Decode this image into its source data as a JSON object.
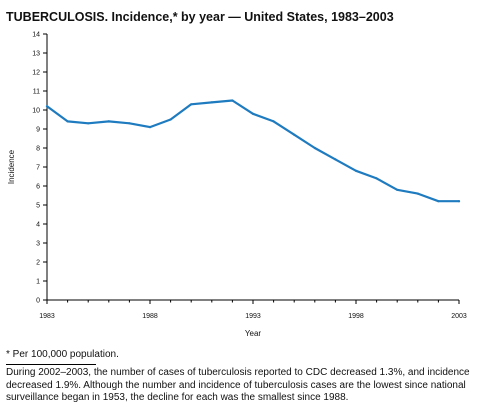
{
  "chart_data": {
    "type": "line",
    "title": "TUBERCULOSIS. Incidence,* by year — United States, 1983–2003",
    "xlabel": "Year",
    "ylabel": "Incidence",
    "xlim": [
      1983,
      2003
    ],
    "ylim": [
      0,
      14
    ],
    "x_ticks": [
      1983,
      1984,
      1985,
      1986,
      1987,
      1988,
      1989,
      1990,
      1991,
      1992,
      1993,
      1994,
      1995,
      1996,
      1997,
      1998,
      1999,
      2000,
      2001,
      2002,
      2003
    ],
    "x_tick_labels": [
      "1983",
      "",
      "",
      "",
      "",
      "1988",
      "",
      "",
      "",
      "",
      "1993",
      "",
      "",
      "",
      "",
      "1998",
      "",
      "",
      "",
      "",
      "2003"
    ],
    "y_ticks": [
      0,
      1,
      2,
      3,
      4,
      5,
      6,
      7,
      8,
      9,
      10,
      11,
      12,
      13,
      14
    ],
    "y_tick_labels": [
      "0",
      "1",
      "2",
      "3",
      "4",
      "5",
      "6",
      "7",
      "8",
      "9",
      "10",
      "11",
      "12",
      "13",
      "14"
    ],
    "grid": false,
    "line_color": "#1e7bbf",
    "series": [
      {
        "x": [
          1983,
          1984,
          1985,
          1986,
          1987,
          1988,
          1989,
          1990,
          1991,
          1992,
          1993,
          1994,
          1995,
          1996,
          1997,
          1998,
          1999,
          2000,
          2001,
          2002,
          2003
        ],
        "values": [
          10.2,
          9.4,
          9.3,
          9.4,
          9.3,
          9.1,
          9.5,
          10.3,
          10.4,
          10.5,
          9.8,
          9.4,
          8.7,
          8.0,
          7.4,
          6.8,
          6.4,
          5.8,
          5.6,
          5.2,
          5.2
        ]
      }
    ]
  },
  "footnote": "* Per 100,000 population.",
  "note": "During 2002–2003, the number of cases of tuberculosis reported to CDC decreased 1.3%, and incidence decreased 1.9%. Although the number and incidence of tuberculosis cases are the lowest since national surveillance began in 1953, the decline for each was the smallest since 1988."
}
